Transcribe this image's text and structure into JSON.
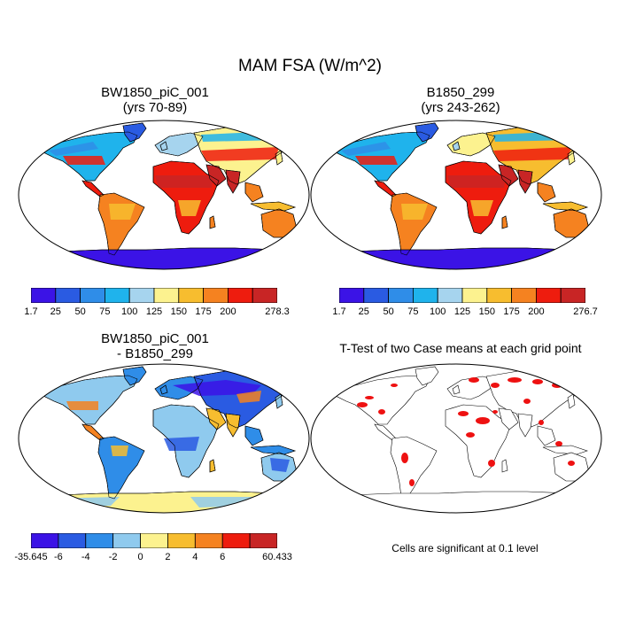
{
  "title": "MAM FSA (W/m^2)",
  "panels": [
    {
      "id": "tl",
      "title_line1": "BW1850_piC_001",
      "title_line2": "(yrs 70-89)",
      "field": "absolute"
    },
    {
      "id": "tr",
      "title_line1": "B1850_299",
      "title_line2": "(yrs 243-262)",
      "field": "absolute"
    },
    {
      "id": "bl",
      "title_line1": "BW1850_piC_001",
      "title_line2": "- B1850_299",
      "field": "difference"
    },
    {
      "id": "br",
      "title_line1": "T-Test of two Case means at each grid point",
      "field": "significance"
    }
  ],
  "colorbars": [
    {
      "id": "tl",
      "labels": [
        "1.7",
        "25",
        "50",
        "75",
        "100",
        "125",
        "150",
        "175",
        "200",
        "278.3"
      ]
    },
    {
      "id": "tr",
      "labels": [
        "1.7",
        "25",
        "50",
        "75",
        "100",
        "125",
        "150",
        "175",
        "200",
        "276.7"
      ]
    },
    {
      "id": "bl",
      "labels": [
        "-35.645",
        "-6",
        "-4",
        "-2",
        "0",
        "2",
        "4",
        "6",
        "60.433"
      ]
    }
  ],
  "palettes": {
    "absolute": [
      "#3b13e6",
      "#2a5be2",
      "#2f8de8",
      "#1fb3ec",
      "#a6d4ee",
      "#fcf28f",
      "#f7bd2f",
      "#f58220",
      "#ee1c0e",
      "#c82525"
    ],
    "difference": [
      "#3b13e6",
      "#2a5be2",
      "#2f8de8",
      "#8fcaee",
      "#fcf28f",
      "#f7bd2f",
      "#f58220",
      "#ee1c0e",
      "#c82525"
    ],
    "significant": "#ee1111"
  },
  "significance_note": "Cells are significant at 0.1 level"
}
